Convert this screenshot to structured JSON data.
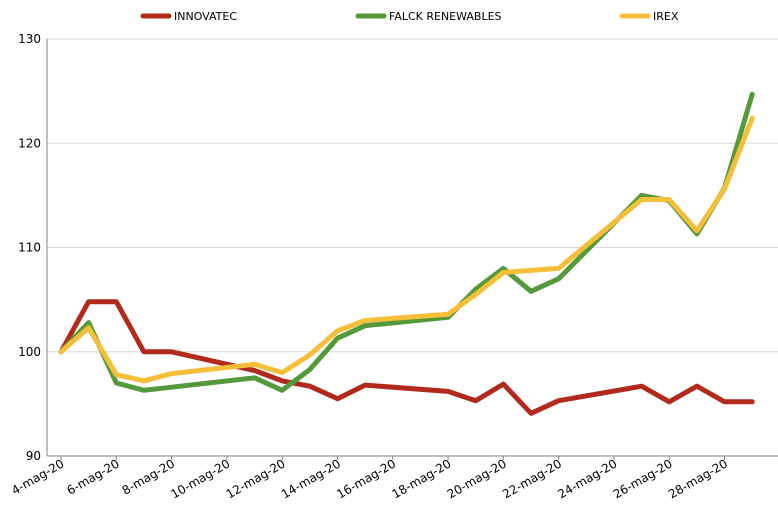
{
  "chart_data": {
    "type": "line",
    "title": "",
    "xlabel": "",
    "ylabel": "",
    "ylim": [
      90,
      130
    ],
    "yticks": [
      90,
      100,
      110,
      120,
      130
    ],
    "grid": true,
    "legend_position": "top",
    "x": [
      "4-mag-20",
      "5-mag-20",
      "6-mag-20",
      "7-mag-20",
      "8-mag-20",
      "11-mag-20",
      "12-mag-20",
      "13-mag-20",
      "14-mag-20",
      "15-mag-20",
      "18-mag-20",
      "19-mag-20",
      "20-mag-20",
      "21-mag-20",
      "22-mag-20",
      "25-mag-20",
      "26-mag-20",
      "27-mag-20",
      "28-mag-20",
      "29-mag-20"
    ],
    "x_positions": [
      4,
      5,
      6,
      7,
      8,
      11,
      12,
      13,
      14,
      15,
      18,
      19,
      20,
      21,
      22,
      25,
      26,
      27,
      28,
      29
    ],
    "x_range": [
      4,
      29.5
    ],
    "xtick_labels": [
      "4-mag-20",
      "6-mag-20",
      "8-mag-20",
      "10-mag-20",
      "12-mag-20",
      "14-mag-20",
      "16-mag-20",
      "18-mag-20",
      "20-mag-20",
      "22-mag-20",
      "24-mag-20",
      "26-mag-20",
      "28-mag-20"
    ],
    "xtick_positions": [
      4,
      6,
      8,
      10,
      12,
      14,
      16,
      18,
      20,
      22,
      24,
      26,
      28
    ],
    "series": [
      {
        "name": "INNOVATEC",
        "color": "#b22a1c",
        "values": [
          100,
          104.8,
          104.8,
          100,
          100,
          98.2,
          97.2,
          96.7,
          95.5,
          96.8,
          96.2,
          95.3,
          96.9,
          94.1,
          95.3,
          96.7,
          95.2,
          96.7,
          95.2,
          95.2
        ]
      },
      {
        "name": "FALCK RENEWABLES",
        "color": "#549a3a",
        "values": [
          100,
          102.8,
          97.0,
          96.3,
          96.6,
          97.5,
          96.3,
          98.3,
          101.3,
          102.5,
          103.3,
          106.0,
          108.0,
          105.8,
          107.0,
          115.0,
          114.5,
          111.3,
          115.7,
          124.7
        ]
      },
      {
        "name": "IREX",
        "color": "#f6bf3a",
        "values": [
          100,
          102.3,
          97.8,
          97.2,
          97.9,
          98.8,
          98.0,
          99.7,
          102.0,
          103.0,
          103.6,
          105.5,
          107.6,
          107.8,
          108.0,
          114.6,
          114.6,
          111.6,
          115.6,
          122.4
        ]
      }
    ]
  }
}
